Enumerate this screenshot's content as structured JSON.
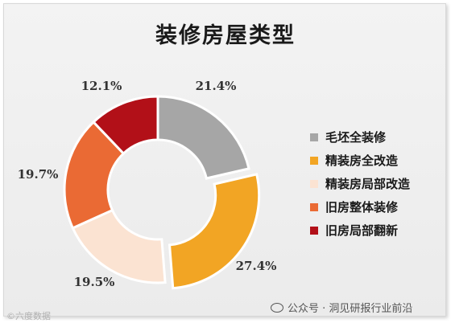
{
  "chart_data": {
    "type": "pie",
    "title": "装修房屋类型",
    "categories": [
      "毛坯全装修",
      "精装房全改造",
      "精装房局部改造",
      "旧房整体装修",
      "旧房局部翻新"
    ],
    "values": [
      21.4,
      27.4,
      19.5,
      19.7,
      12.1
    ],
    "value_labels": [
      "21.4%",
      "27.4%",
      "19.5%",
      "19.7%",
      "12.1%"
    ],
    "colors": [
      "#a6a6a6",
      "#f2a524",
      "#fbe3d2",
      "#ea6a34",
      "#b21018"
    ],
    "legend_position": "right",
    "exploded": [
      "精装房全改造"
    ]
  },
  "watermark": {
    "left_text": "©六度数据",
    "right_text": "公众号 · 洞见研报行业前沿"
  }
}
